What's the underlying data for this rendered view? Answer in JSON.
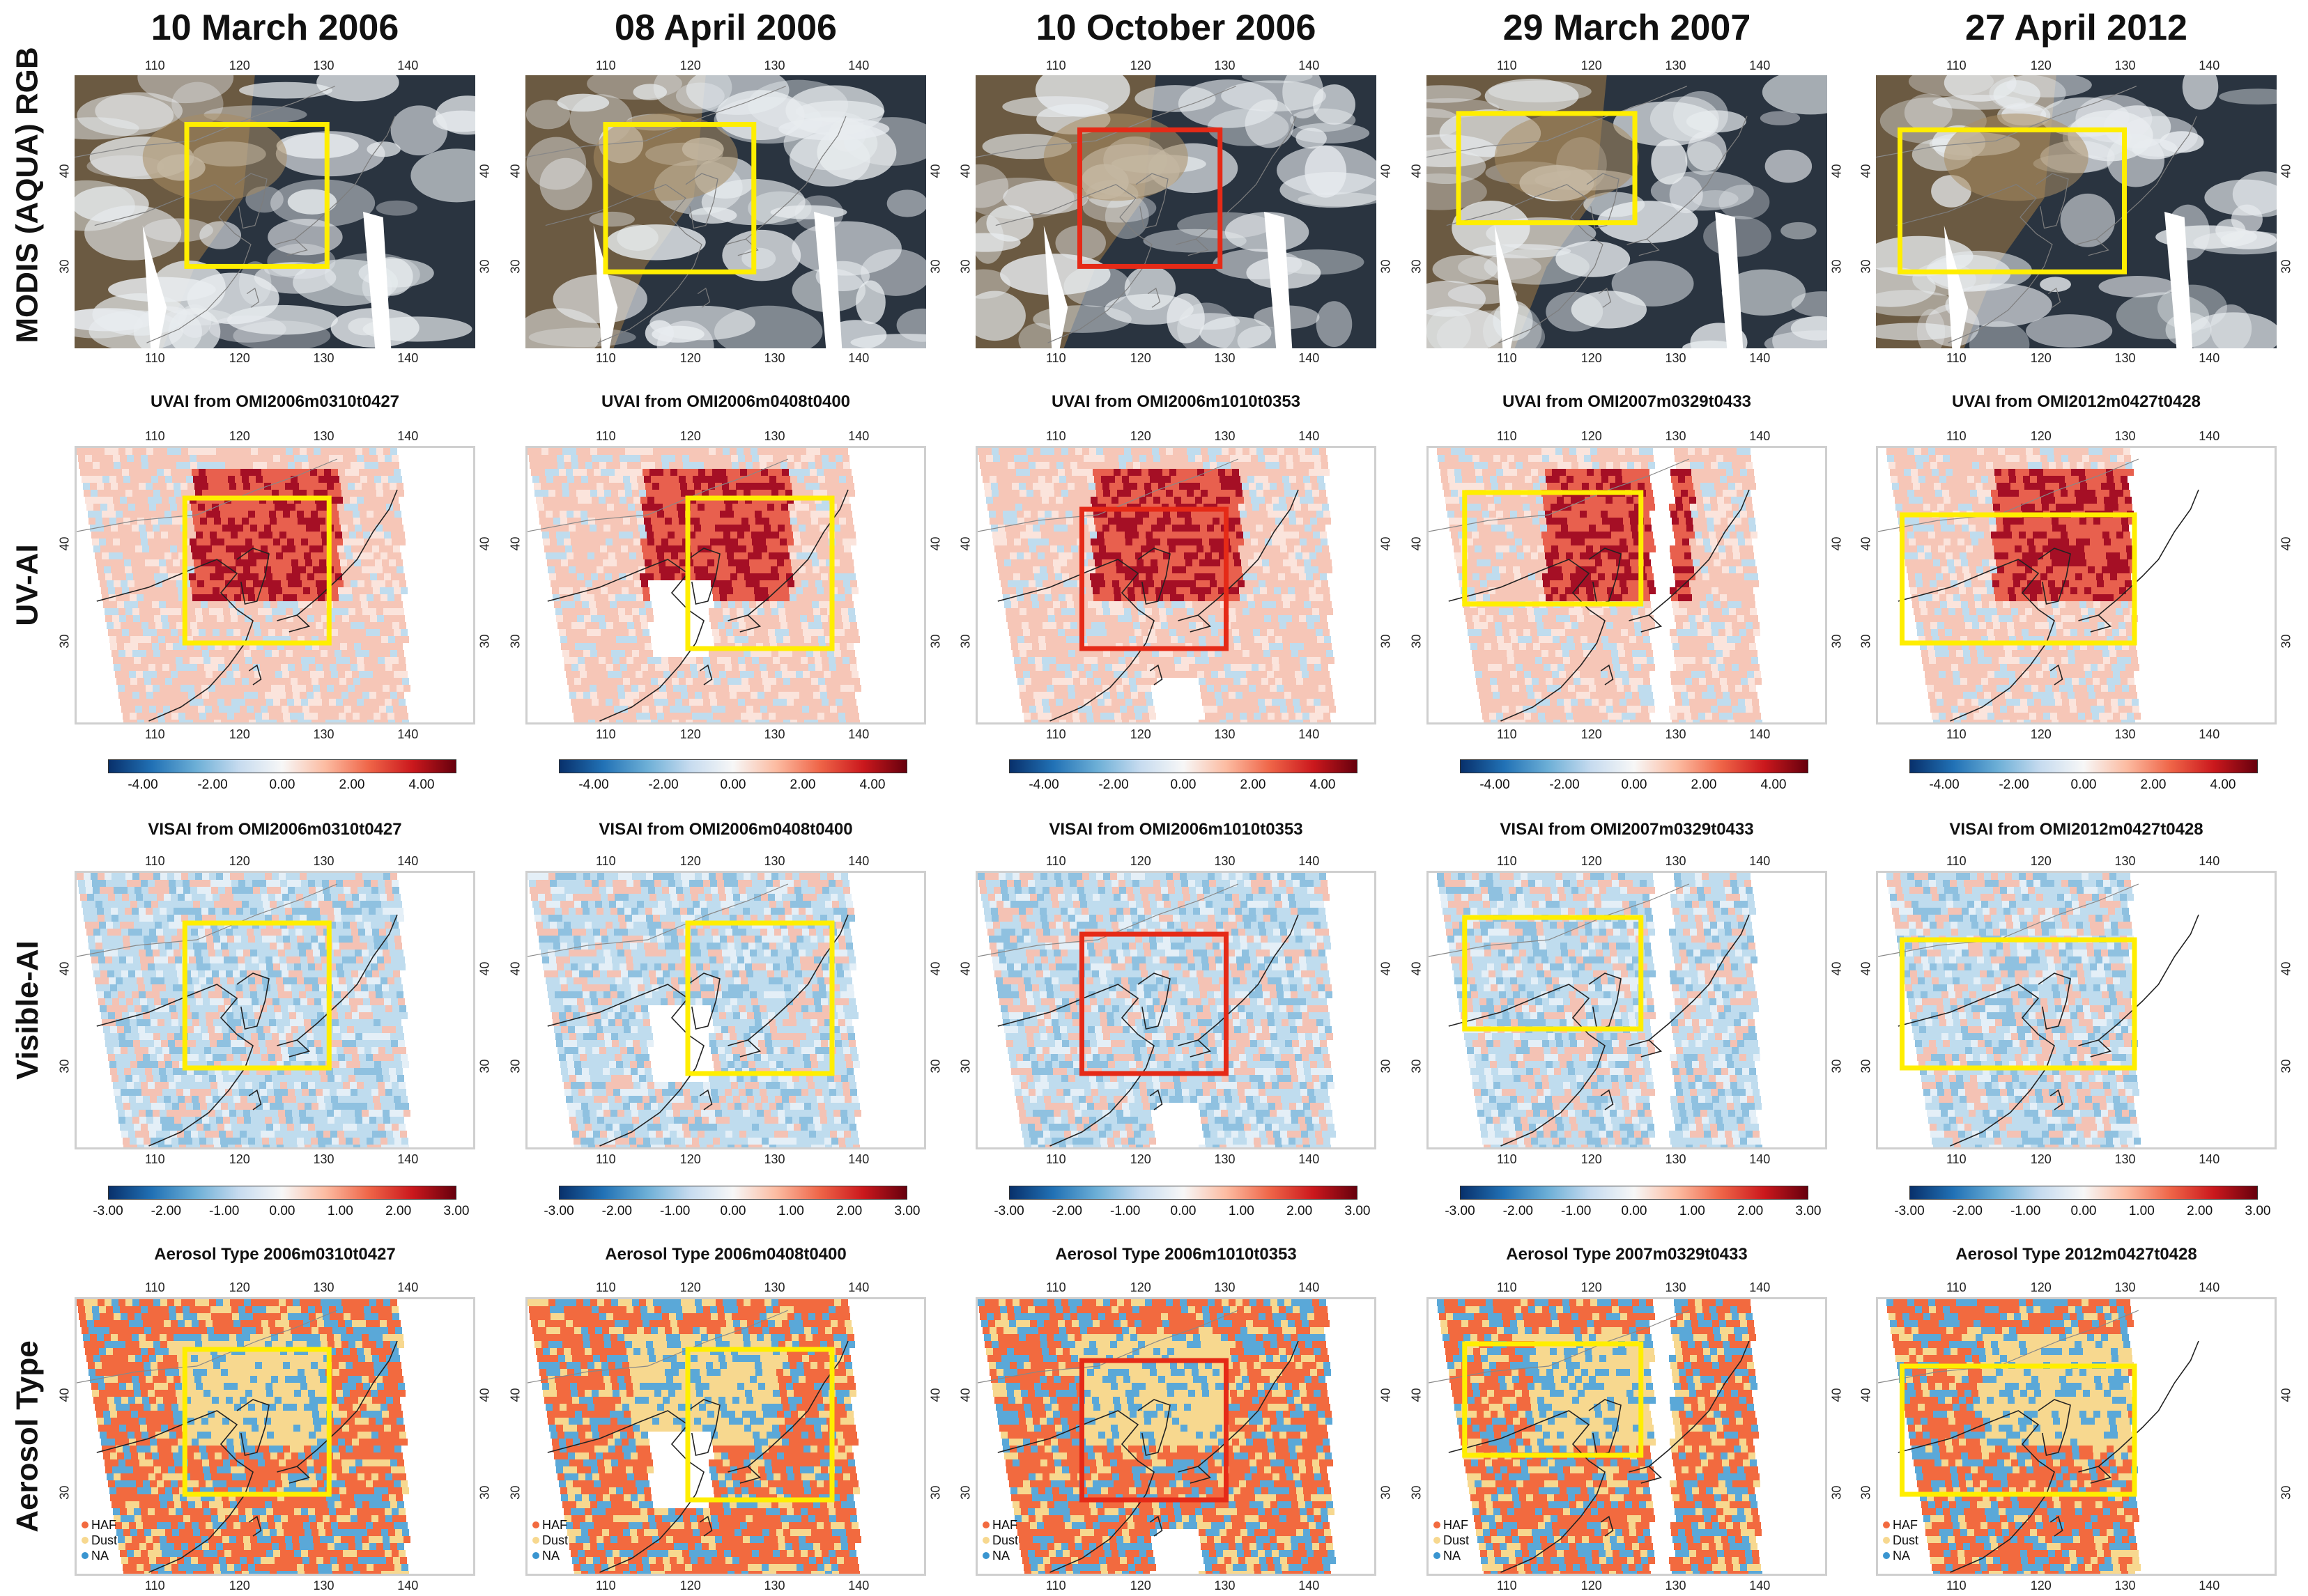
{
  "columns": [
    {
      "title": "10 March 2006",
      "uvai": "UVAI from OMI2006m0310t0427",
      "visai": "VISAI from OMI2006m0310t0427",
      "atype": "Aerosol Type 2006m0310t0427",
      "box_color": "#ffee00"
    },
    {
      "title": "08 April 2006",
      "uvai": "UVAI from OMI2006m0408t0400",
      "visai": "VISAI from OMI2006m0408t0400",
      "atype": "Aerosol Type 2006m0408t0400",
      "box_color": "#ffee00"
    },
    {
      "title": "10 October 2006",
      "uvai": "UVAI from OMI2006m1010t0353",
      "visai": "VISAI from OMI2006m1010t0353",
      "atype": "Aerosol Type 2006m1010t0353",
      "box_color": "#e52a17"
    },
    {
      "title": "29 March 2007",
      "uvai": "UVAI from OMI2007m0329t0433",
      "visai": "VISAI from OMI2007m0329t0433",
      "atype": "Aerosol Type 2007m0329t0433",
      "box_color": "#ffee00"
    },
    {
      "title": "27 April 2012",
      "uvai": "UVAI from OMI2012m0427t0428",
      "visai": "VISAI from OMI2012m0427t0428",
      "atype": "Aerosol Type 2012m0427t0428",
      "box_color": "#ffee00"
    }
  ],
  "rows": {
    "modis": "MODIS (AQUA) RGB",
    "uvai": "UV-AI",
    "visai": "Visible-AI",
    "atype": "Aerosol Type"
  },
  "axes": {
    "lon_ticks": [
      "110",
      "120",
      "130",
      "140"
    ],
    "lat_ticks": [
      "40",
      "30"
    ]
  },
  "uvai_colorbar": {
    "ticks": [
      "-4.00",
      "-2.00",
      "0.00",
      "2.00",
      "4.00"
    ],
    "range": [
      -5,
      5
    ]
  },
  "visai_colorbar": {
    "ticks": [
      "-3.00",
      "-2.00",
      "-1.00",
      "0.00",
      "1.00",
      "2.00",
      "3.00"
    ],
    "range": [
      -3,
      3
    ]
  },
  "legend": [
    {
      "label": "HAF",
      "color": "#f26a3f"
    },
    {
      "label": "Dust",
      "color": "#f7d88f"
    },
    {
      "label": "NA",
      "color": "#3a95d0"
    }
  ],
  "colors": {
    "haf": "#f26a3f",
    "dust": "#f7d88f",
    "na": "#5aa8d8",
    "red_dark": "#a50f25",
    "red": "#e8604e",
    "blue": "#3c93c8",
    "light_blue": "#bfdcee"
  }
}
